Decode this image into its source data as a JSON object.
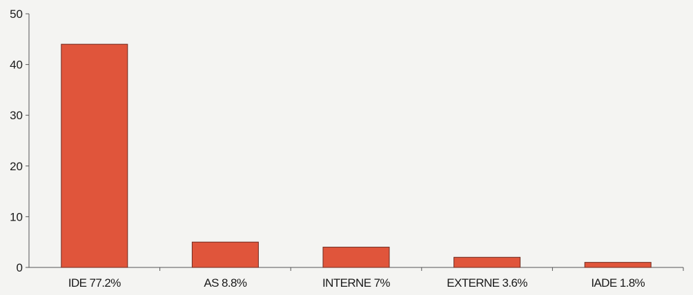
{
  "colors": {
    "bar_fill": "#e0553b",
    "bar_stroke": "#6e2a1f",
    "axis": "#555555",
    "background": "#f4f4f2"
  },
  "chart_data": {
    "type": "bar",
    "title": "",
    "xlabel": "",
    "ylabel": "",
    "categories": [
      "IDE 77.2%",
      "AS 8.8%",
      "INTERNE 7%",
      "EXTERNE 3.6%",
      "IADE 1.8%"
    ],
    "values": [
      44,
      5,
      4,
      2,
      1
    ],
    "ylim": [
      0,
      50
    ],
    "yticks": [
      0,
      10,
      20,
      30,
      40,
      50
    ],
    "grid": false,
    "legend": "none"
  }
}
